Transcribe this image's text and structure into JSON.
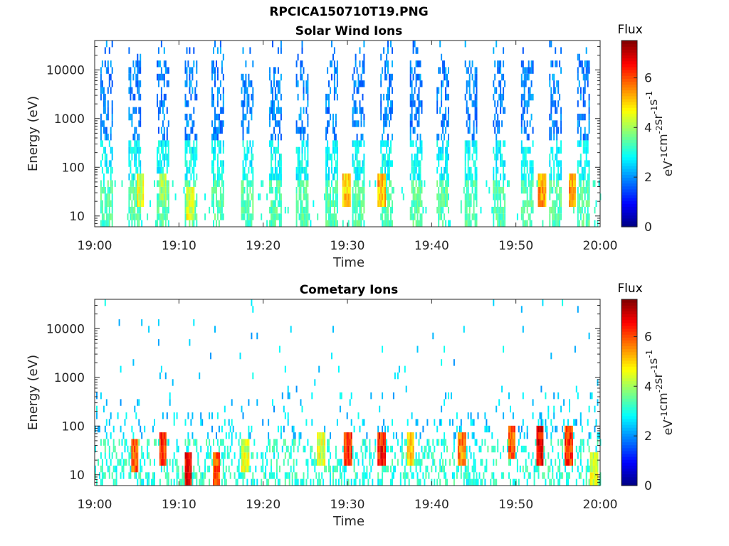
{
  "page": {
    "title": "RPCICA150710T19.PNG"
  },
  "colorbar": {
    "label": "Flux",
    "unit_base": [
      "eV",
      "cm",
      "sr",
      "s"
    ],
    "unit_exponents": [
      "-1",
      "-2",
      "-1",
      "-1"
    ],
    "ticks": [
      "0",
      "2",
      "4",
      "6"
    ],
    "range": [
      0,
      7.5
    ],
    "colormap": "jet"
  },
  "chart_data": [
    {
      "type": "heatmap",
      "title": "Solar Wind Ions",
      "xlabel": "Time",
      "ylabel": "Energy (eV)",
      "x_ticks": [
        "19:00",
        "19:10",
        "19:20",
        "19:30",
        "19:40",
        "19:50",
        "20:00"
      ],
      "x_range": [
        "19:00",
        "20:00"
      ],
      "y_scale": "log",
      "y_ticks": [
        "10",
        "100",
        "1000",
        "10000"
      ],
      "y_range": [
        6,
        40000
      ],
      "colorbar_range": [
        0,
        7.5
      ],
      "sweep_times_min": [
        1.3,
        4.6,
        8.0,
        11.3,
        14.6,
        18.0,
        21.3,
        24.6,
        28.0,
        31.3,
        34.6,
        38.0,
        41.3,
        44.6,
        48.0,
        51.3,
        54.6,
        58.0
      ],
      "hotspots": [
        {
          "time_min": 5.3,
          "energy_ev": 30,
          "flux": 5.0
        },
        {
          "time_min": 8.0,
          "energy_ev": 30,
          "flux": 4.5
        },
        {
          "time_min": 11.3,
          "energy_ev": 20,
          "flux": 5.0
        },
        {
          "time_min": 29.8,
          "energy_ev": 38,
          "flux": 5.6
        },
        {
          "time_min": 34.0,
          "energy_ev": 38,
          "flux": 5.8
        },
        {
          "time_min": 53.0,
          "energy_ev": 38,
          "flux": 6.0
        },
        {
          "time_min": 56.6,
          "energy_ev": 35,
          "flux": 6.0
        }
      ]
    },
    {
      "type": "heatmap",
      "title": "Cometary Ions",
      "xlabel": "Time",
      "ylabel": "Energy (eV)",
      "x_ticks": [
        "19:00",
        "19:10",
        "19:20",
        "19:30",
        "19:40",
        "19:50",
        "20:00"
      ],
      "x_range": [
        "19:00",
        "20:00"
      ],
      "y_scale": "log",
      "y_ticks": [
        "10",
        "100",
        "1000",
        "10000"
      ],
      "y_range": [
        6,
        40000
      ],
      "colorbar_range": [
        0,
        7.5
      ],
      "hotspots": [
        {
          "time_min": 4.7,
          "energy_ev": 25,
          "flux": 6.5
        },
        {
          "time_min": 8.0,
          "energy_ev": 30,
          "flux": 6.8
        },
        {
          "time_min": 11.0,
          "energy_ev": 12,
          "flux": 7.2
        },
        {
          "time_min": 14.4,
          "energy_ev": 15,
          "flux": 6.5
        },
        {
          "time_min": 17.8,
          "energy_ev": 25,
          "flux": 5.0
        },
        {
          "time_min": 26.8,
          "energy_ev": 30,
          "flux": 5.0
        },
        {
          "time_min": 30.0,
          "energy_ev": 38,
          "flux": 6.8
        },
        {
          "time_min": 34.0,
          "energy_ev": 35,
          "flux": 7.0
        },
        {
          "time_min": 37.4,
          "energy_ev": 30,
          "flux": 5.5
        },
        {
          "time_min": 43.5,
          "energy_ev": 30,
          "flux": 6.2
        },
        {
          "time_min": 49.4,
          "energy_ev": 45,
          "flux": 6.5
        },
        {
          "time_min": 52.8,
          "energy_ev": 40,
          "flux": 7.2
        },
        {
          "time_min": 56.2,
          "energy_ev": 40,
          "flux": 6.8
        },
        {
          "time_min": 59.2,
          "energy_ev": 12,
          "flux": 5.0
        }
      ]
    }
  ]
}
